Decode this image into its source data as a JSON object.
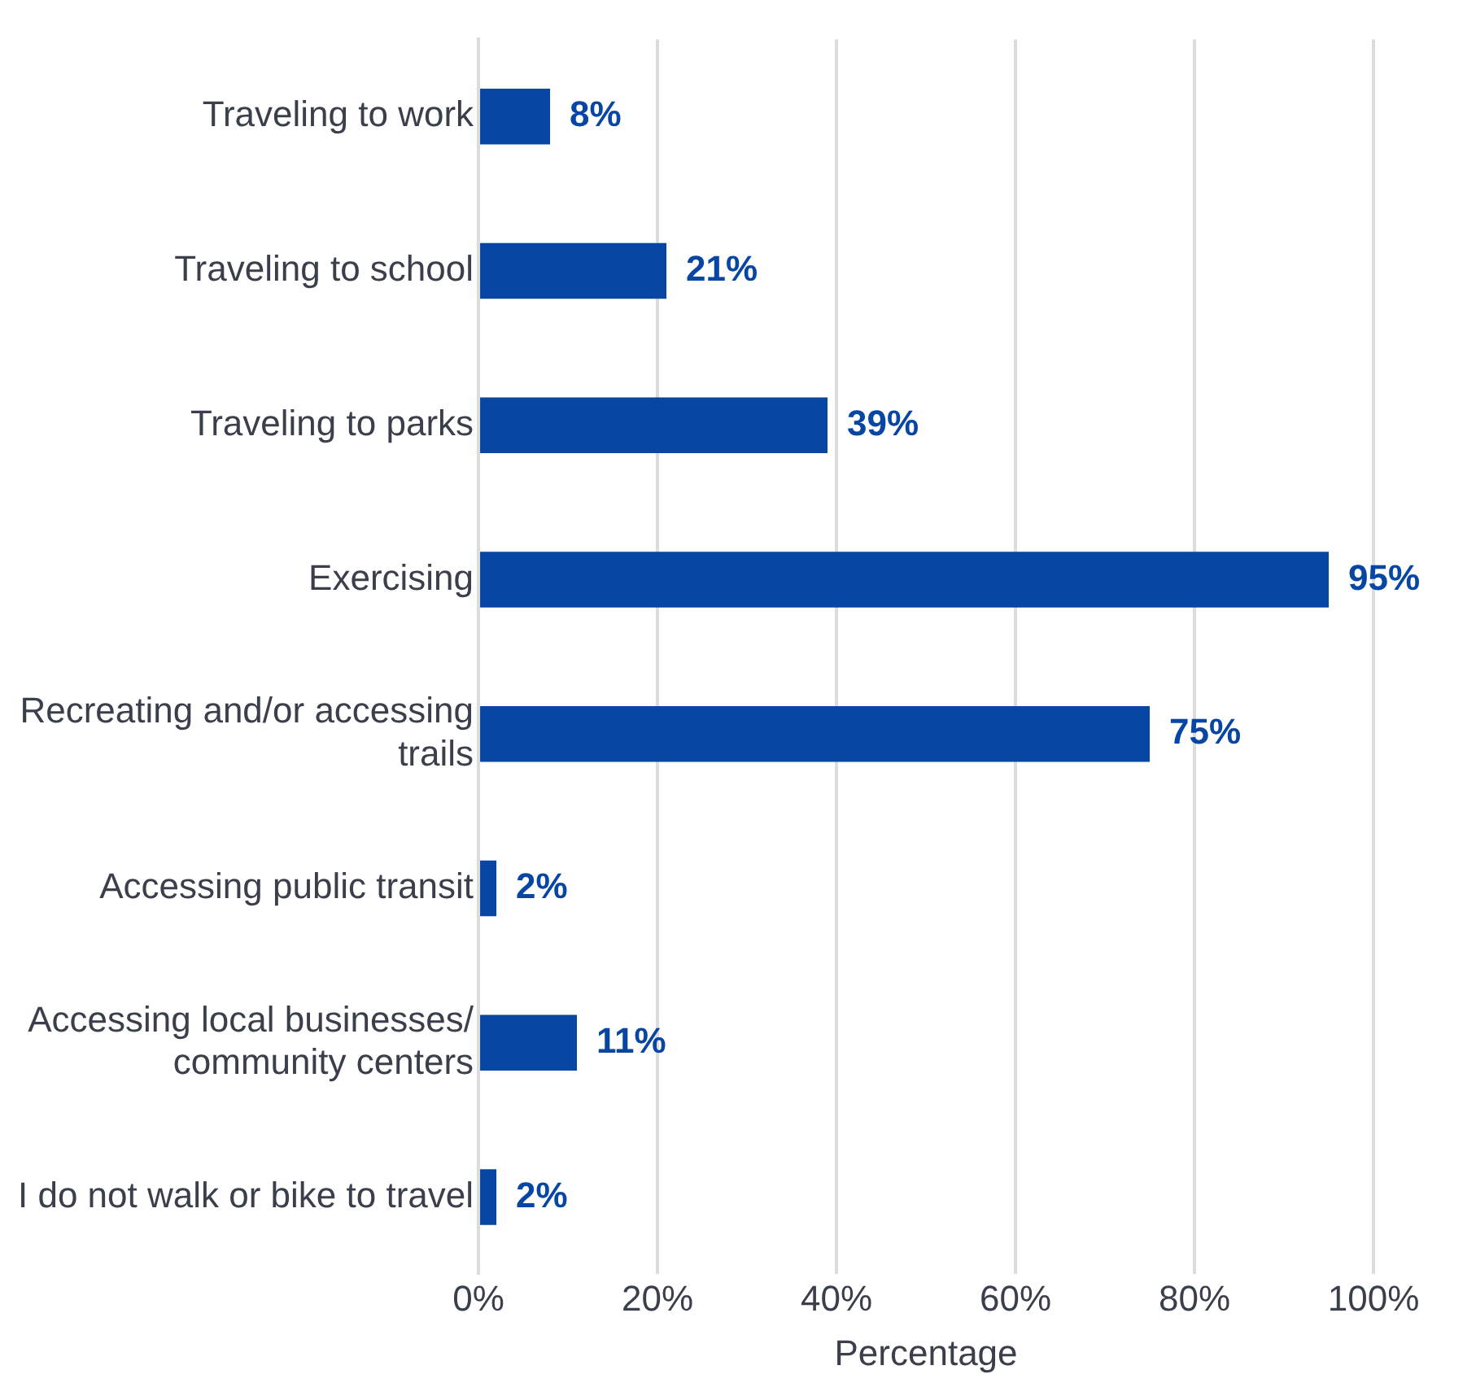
{
  "chart_data": {
    "type": "bar",
    "orientation": "horizontal",
    "xlabel": "Percentage",
    "categories": [
      "Traveling to work",
      "Traveling to school",
      "Traveling to parks",
      "Exercising",
      "Recreating and/or accessing trails",
      "Accessing public transit",
      "Accessing local businesses/ community centers",
      "I do not walk or bike to travel"
    ],
    "values": [
      8,
      21,
      39,
      95,
      75,
      2,
      11,
      2
    ],
    "value_labels": [
      "8%",
      "21%",
      "39%",
      "95%",
      "75%",
      "2%",
      "11%",
      "2%"
    ],
    "color": "#0846a3",
    "xlim": [
      0,
      100
    ],
    "xticks": [
      {
        "value": 0,
        "label": "0%"
      },
      {
        "value": 20,
        "label": "20%"
      },
      {
        "value": 40,
        "label": "40%"
      },
      {
        "value": 60,
        "label": "60%"
      },
      {
        "value": 80,
        "label": "80%"
      },
      {
        "value": 100,
        "label": "100%"
      }
    ],
    "grid": "x",
    "legend": false
  }
}
